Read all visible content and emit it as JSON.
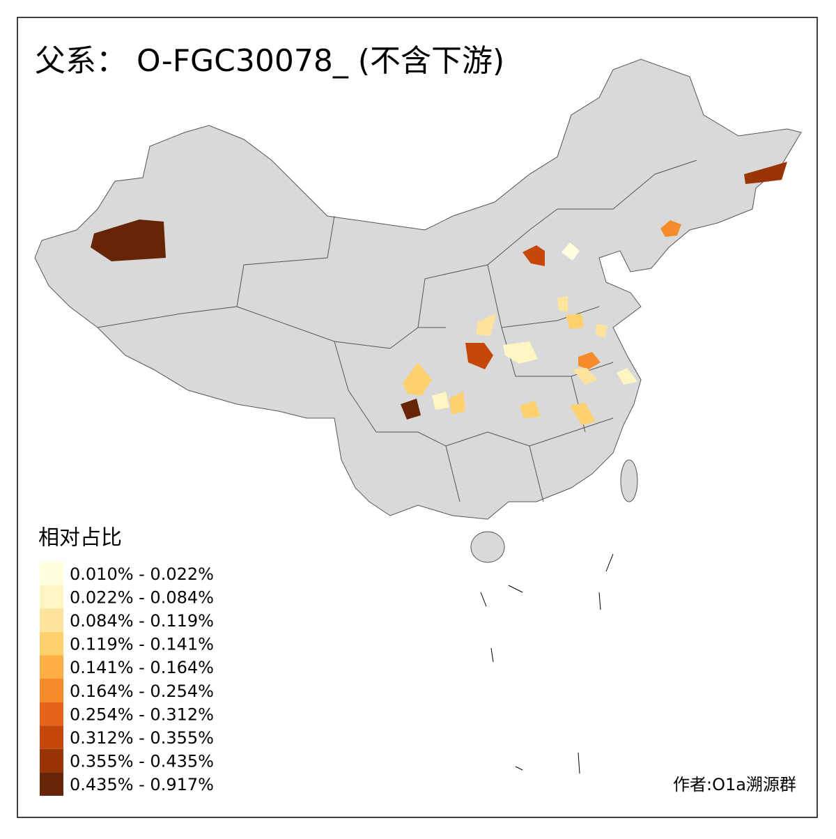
{
  "title": "父系： O-FGC30078_ (不含下游)",
  "legend": {
    "title": "相对占比",
    "items": [
      {
        "label": "0.010% - 0.022%",
        "color": "#ffffe0"
      },
      {
        "label": "0.022% - 0.084%",
        "color": "#fff5c2"
      },
      {
        "label": "0.084% - 0.119%",
        "color": "#fee49a"
      },
      {
        "label": "0.119% - 0.141%",
        "color": "#fed16f"
      },
      {
        "label": "0.141% - 0.164%",
        "color": "#feae45"
      },
      {
        "label": "0.164% - 0.254%",
        "color": "#f68b2a"
      },
      {
        "label": "0.254% - 0.312%",
        "color": "#e5661a"
      },
      {
        "label": "0.312% - 0.355%",
        "color": "#c6470a"
      },
      {
        "label": "0.355% - 0.435%",
        "color": "#993404"
      },
      {
        "label": "0.435% - 0.917%",
        "color": "#662506"
      }
    ]
  },
  "author": "作者:O1a溯源群"
}
